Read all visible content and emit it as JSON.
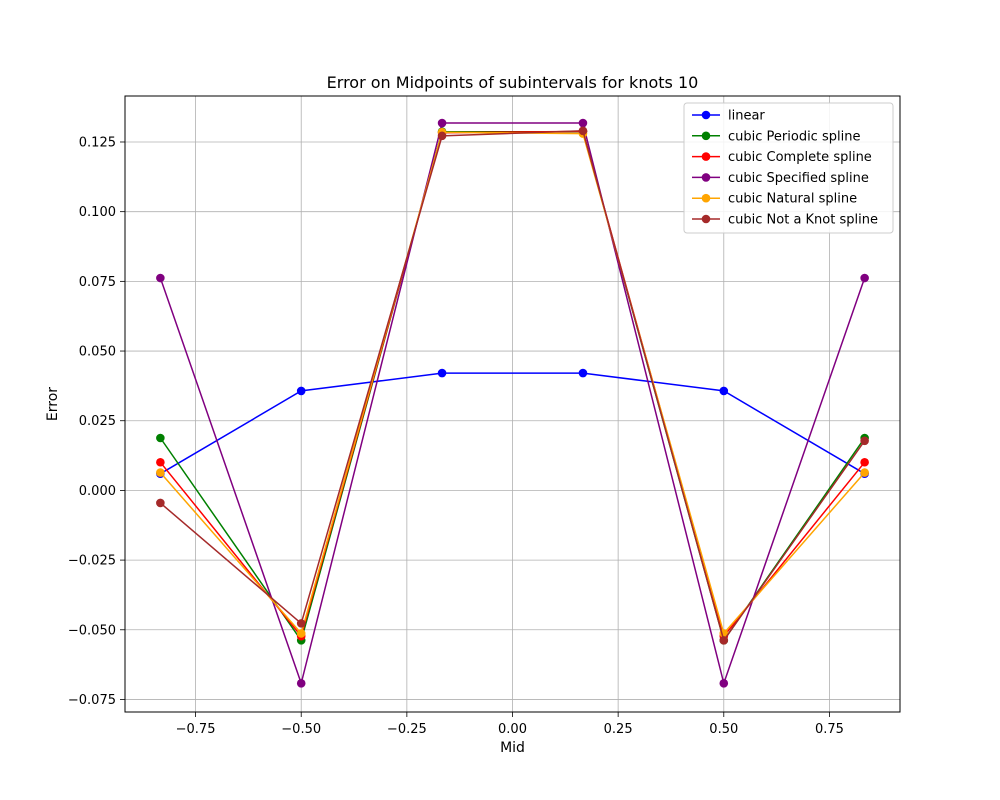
{
  "chart_data": {
    "type": "line",
    "title": "Error on Midpoints of subintervals for knots 10",
    "xlabel": "Mid",
    "ylabel": "Error",
    "xlim": [
      -0.917,
      0.917
    ],
    "ylim": [
      -0.0795,
      0.1415
    ],
    "xticks": [
      -0.75,
      -0.5,
      -0.25,
      0.0,
      0.25,
      0.5,
      0.75
    ],
    "xtick_labels": [
      "−0.75",
      "−0.50",
      "−0.25",
      "0.00",
      "0.25",
      "0.50",
      "0.75"
    ],
    "yticks": [
      -0.075,
      -0.05,
      -0.025,
      0.0,
      0.025,
      0.05,
      0.075,
      0.1,
      0.125
    ],
    "ytick_labels": [
      "−0.075",
      "−0.050",
      "−0.025",
      "0.000",
      "0.025",
      "0.050",
      "0.075",
      "0.100",
      "0.125"
    ],
    "grid": true,
    "legend_position": "top-right",
    "x": [
      -0.8333,
      -0.5,
      -0.1667,
      0.1667,
      0.5,
      0.8333
    ],
    "series": [
      {
        "name": "linear",
        "color": "#0000ff",
        "values": [
          0.006,
          0.0357,
          0.0421,
          0.0421,
          0.0357,
          0.006
        ]
      },
      {
        "name": "cubic Periodic spline",
        "color": "#008000",
        "values": [
          0.0188,
          -0.0538,
          0.1287,
          0.1287,
          -0.0538,
          0.0188
        ]
      },
      {
        "name": "cubic Complete spline",
        "color": "#ff0000",
        "values": [
          0.0101,
          -0.0523,
          0.1283,
          0.1288,
          -0.0523,
          0.0101
        ]
      },
      {
        "name": "cubic Specified spline",
        "color": "#800080",
        "values": [
          0.0762,
          -0.0692,
          0.1318,
          0.1318,
          -0.0692,
          0.0762
        ]
      },
      {
        "name": "cubic Natural spline",
        "color": "#ffa500",
        "values": [
          0.0064,
          -0.0513,
          0.1285,
          0.128,
          -0.0513,
          0.0064
        ]
      },
      {
        "name": "cubic Not a Knot spline",
        "color": "#a52a2a",
        "values": [
          -0.0045,
          -0.0477,
          0.1272,
          0.129,
          -0.0538,
          0.0178
        ]
      }
    ]
  }
}
